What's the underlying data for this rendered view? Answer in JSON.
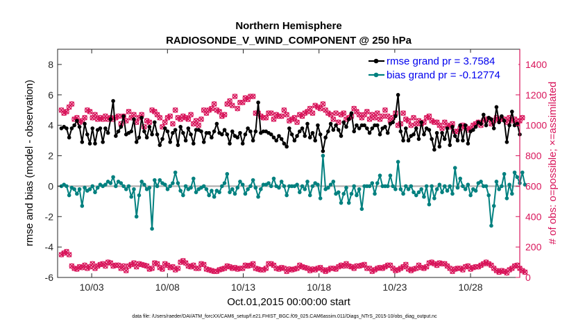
{
  "colors": {
    "rmse": "#000000",
    "bias": "#00807f",
    "obs": "#d8145a",
    "zero": "#b3b3b3",
    "legend_rmse_text": "#0000ee",
    "legend_bias_text": "#0000ee"
  },
  "chart_data": {
    "type": "line",
    "title": "Northern Hemisphere",
    "subtitle": "RADIOSONDE_V_WIND_COMPONENT @ 250 hPa",
    "xlabel": "Oct.01,2015 00:00:00 start",
    "ylabel_left": "rmse and bias (model - observation)",
    "ylabel_right": "# of obs: o=possible; ×=assimilated",
    "x_start_day": 0.75,
    "x_end_day": 31.25,
    "ylim_left": [
      -6,
      9
    ],
    "ylim_right": [
      0,
      1500
    ],
    "x_ticks": [
      {
        "day": 3,
        "label": "10/03"
      },
      {
        "day": 8,
        "label": "10/08"
      },
      {
        "day": 13,
        "label": "10/13"
      },
      {
        "day": 18,
        "label": "10/18"
      },
      {
        "day": 23,
        "label": "10/23"
      },
      {
        "day": 28,
        "label": "10/28"
      }
    ],
    "y_ticks_left": [
      "-6",
      "-4",
      "-2",
      "0",
      "2",
      "4",
      "6",
      "8"
    ],
    "y_ticks_right": [
      "0",
      "200",
      "400",
      "600",
      "800",
      "1000",
      "1200",
      "1400"
    ],
    "legend": [
      {
        "key": "rmse",
        "label": "rmse grand pr = 3.7584"
      },
      {
        "key": "bias",
        "label": "bias grand pr = -0.12774"
      }
    ],
    "footer": "data file: /Users/raeder/DAI/ATM_forcXX/CAM6_setup/f.e21.FHIST_BGC.f09_025.CAM6assim.011/Diags_NTrS_2015-10/obs_diag_output.nc",
    "series": [
      {
        "name": "rmse",
        "axis": "left",
        "values": [
          3.8,
          3.9,
          3.8,
          3.2,
          3.8,
          4.0,
          4.3,
          3.9,
          2.9,
          4.1,
          3.4,
          2.8,
          3.8,
          2.8,
          3.7,
          3.8,
          2.9,
          3.8,
          3.5,
          4.4,
          5.6,
          3.3,
          3.6,
          3.9,
          4.6,
          3.4,
          3.5,
          3.6,
          4.4,
          2.9,
          3.2,
          4.5,
          3.6,
          3.2,
          3.9,
          3.4,
          4.2,
          3.4,
          2.7,
          3.1,
          3.8,
          3.6,
          2.9,
          3.5,
          3.7,
          2.7,
          3.9,
          3.5,
          3.0,
          3.8,
          3.4,
          2.8,
          3.7,
          3.7,
          3.6,
          2.9,
          3.5,
          3.5,
          3.2,
          3.6,
          4.1,
          3.5,
          3.4,
          3.7,
          3.4,
          2.8,
          3.6,
          3.3,
          3.2,
          3.5,
          2.8,
          3.4,
          3.8,
          3.6,
          3.0,
          3.6,
          5.5,
          3.5,
          3.6,
          3.6,
          3.5,
          3.4,
          3.2,
          3.0,
          3.3,
          3.1,
          2.8,
          2.6,
          3.8,
          3.4,
          3.0,
          3.3,
          3.6,
          3.8,
          3.3,
          4.1,
          3.2,
          3.5,
          3.0,
          4.0,
          3.4,
          2.3,
          3.2,
          3.6,
          4.1,
          3.7,
          4.0,
          3.7,
          3.3,
          4.2,
          3.9,
          4.4,
          4.8,
          3.6,
          4.0,
          3.8,
          4.0,
          4.0,
          3.8,
          3.5,
          3.8,
          4.0,
          4.0,
          3.4,
          3.8,
          3.9,
          3.5,
          4.1,
          4.2,
          4.6,
          6.0,
          3.6,
          3.0,
          3.8,
          3.0,
          3.3,
          3.4,
          3.8,
          3.1,
          4.2,
          3.4,
          3.8,
          3.7,
          3.1,
          2.4,
          3.5,
          2.6,
          3.5,
          3.1,
          3.8,
          2.7,
          3.9,
          3.3,
          3.0,
          4.0,
          3.0,
          4.0,
          2.8,
          3.6,
          3.7,
          3.9,
          4.2,
          4.1,
          4.7,
          4.0,
          4.5,
          4.4,
          3.8,
          5.2,
          4.2,
          4.6,
          4.3,
          2.9,
          4.0,
          4.9,
          4.0,
          4.1,
          3.4
        ]
      },
      {
        "name": "bias",
        "axis": "left",
        "values": [
          0.0,
          0.1,
          0.0,
          -0.6,
          -0.1,
          -0.2,
          -0.5,
          -0.2,
          -1.3,
          -0.1,
          -0.3,
          -0.2,
          0.0,
          -0.4,
          -0.1,
          0.1,
          0.0,
          0.1,
          0.3,
          0.2,
          0.6,
          0.0,
          0.3,
          0.2,
          0.0,
          -0.2,
          0.0,
          -0.7,
          -0.2,
          -2.0,
          -0.6,
          0.3,
          0.1,
          -0.2,
          -0.1,
          -2.8,
          0.4,
          0.0,
          0.4,
          0.2,
          0.1,
          -0.2,
          0.0,
          0.2,
          0.9,
          0.2,
          -0.3,
          -0.6,
          0.0,
          -0.2,
          -0.1,
          0.5,
          -0.4,
          -0.2,
          -0.1,
          0.0,
          -0.2,
          -0.6,
          -0.3,
          -0.7,
          -0.3,
          -0.4,
          0.0,
          0.2,
          0.8,
          -0.4,
          -0.2,
          -0.5,
          -0.1,
          0.3,
          0.1,
          -0.5,
          -0.2,
          0.0,
          0.4,
          -0.1,
          -0.7,
          -0.2,
          0.1,
          0.1,
          0.2,
          0.0,
          0.5,
          0.0,
          -0.1,
          0.3,
          0.0,
          -0.6,
          0.0,
          0.0,
          0.0,
          0.1,
          -0.4,
          0.0,
          -0.2,
          0.3,
          -0.6,
          0.0,
          0.2,
          0.1,
          -0.8,
          2.0,
          -0.2,
          -0.1,
          0.1,
          0.3,
          -0.5,
          -0.4,
          -1.1,
          -0.5,
          -0.1,
          -1.1,
          -0.5,
          0.0,
          -0.6,
          -0.2,
          -1.5,
          0.0,
          0.0,
          0.0,
          0.2,
          -0.5,
          0.2,
          0.7,
          0.0,
          0.0,
          0.0,
          0.7,
          0.0,
          -0.2,
          1.6,
          -0.2,
          -0.5,
          0.0,
          -0.2,
          0.0,
          -0.4,
          -0.6,
          -0.4,
          -0.2,
          -0.7,
          0.0,
          -1.2,
          0.0,
          -0.8,
          -0.2,
          0.1,
          -0.4,
          0.0,
          -0.3,
          0.0,
          -0.5,
          1.2,
          -0.1,
          0.5,
          0.0,
          -0.2,
          0.1,
          -0.6,
          -0.2,
          -0.3,
          0.2,
          0.3,
          0.0,
          0.0,
          -0.6,
          -2.6,
          -1.3,
          0.3,
          -0.2,
          0.0,
          0.8,
          -0.8,
          0.1,
          -0.5,
          0.9,
          0.6,
          0.2,
          0.9,
          0.1
        ]
      },
      {
        "name": "possible",
        "axis": "right",
        "marker": "o",
        "values": [
          150,
          160,
          170,
          150,
          75,
          60,
          55,
          70,
          65,
          80,
          60,
          70,
          90,
          60,
          75,
          85,
          90,
          75,
          100,
          95,
          75,
          80,
          80,
          60,
          75,
          45,
          75,
          85,
          95,
          70,
          90,
          85,
          80,
          75,
          55,
          60,
          95,
          90,
          65,
          55,
          90,
          80,
          65,
          70,
          50,
          60,
          100,
          110,
          95,
          75,
          70,
          80,
          60,
          60,
          90,
          85,
          55,
          50,
          45,
          40,
          40,
          50,
          55,
          60,
          75,
          70,
          60,
          65,
          55,
          60,
          60,
          80,
          75,
          80,
          90,
          60,
          55,
          50,
          50,
          60,
          90,
          90,
          80,
          60,
          55,
          65,
          60,
          40,
          55,
          50,
          55,
          60,
          80,
          70,
          65,
          60,
          45,
          55,
          50,
          60,
          65,
          50,
          40,
          50,
          60,
          60,
          55,
          70,
          80,
          75,
          90,
          75,
          70,
          60,
          75,
          75,
          80,
          85,
          60,
          60,
          40,
          50,
          60,
          65,
          60,
          70,
          80,
          80,
          60,
          45,
          50,
          60,
          70,
          85,
          55,
          45,
          55,
          60,
          80,
          65,
          60,
          70,
          95,
          100,
          90,
          80,
          95,
          90,
          90,
          75,
          60,
          40,
          55,
          60,
          60,
          50,
          70,
          75,
          55,
          65,
          70,
          70,
          80,
          90,
          100,
          90,
          80,
          60,
          45,
          35,
          45,
          40,
          30,
          50,
          60,
          75,
          80,
          60,
          45,
          35
        ]
      },
      {
        "name": "assimilated",
        "axis": "right",
        "marker": "x",
        "values": [
          150,
          160,
          170,
          150,
          75,
          60,
          55,
          70,
          65,
          80,
          60,
          70,
          90,
          60,
          75,
          85,
          90,
          75,
          100,
          95,
          75,
          80,
          80,
          60,
          75,
          45,
          75,
          85,
          95,
          70,
          90,
          85,
          80,
          75,
          55,
          60,
          95,
          90,
          65,
          55,
          90,
          80,
          65,
          70,
          50,
          60,
          100,
          110,
          95,
          75,
          70,
          80,
          60,
          60,
          90,
          85,
          55,
          50,
          45,
          40,
          40,
          50,
          55,
          60,
          75,
          70,
          60,
          65,
          55,
          60,
          60,
          80,
          75,
          80,
          90,
          60,
          55,
          50,
          50,
          60,
          90,
          90,
          80,
          60,
          55,
          65,
          60,
          40,
          55,
          50,
          55,
          60,
          80,
          70,
          65,
          60,
          45,
          55,
          50,
          60,
          65,
          50,
          40,
          50,
          60,
          60,
          55,
          70,
          80,
          75,
          90,
          75,
          70,
          60,
          75,
          75,
          80,
          85,
          60,
          60,
          40,
          50,
          60,
          65,
          60,
          70,
          80,
          80,
          60,
          45,
          50,
          60,
          70,
          85,
          55,
          45,
          55,
          60,
          80,
          65,
          60,
          70,
          95,
          100,
          90,
          80,
          95,
          90,
          90,
          75,
          60,
          40,
          55,
          60,
          60,
          50,
          70,
          75,
          55,
          65,
          70,
          70,
          80,
          90,
          100,
          90,
          80,
          60,
          45,
          35,
          45,
          40,
          30,
          50,
          60,
          75,
          80,
          60,
          45,
          35
        ]
      },
      {
        "name": "possible_upper",
        "axis": "right",
        "marker": "o",
        "values": [
          1100,
          1080,
          1090,
          1120,
          1140,
          1040,
          1050,
          1020,
          1030,
          1050,
          1100,
          1090,
          1050,
          1070,
          1040,
          1050,
          1040,
          1060,
          1040,
          1050,
          1040,
          1050,
          1060,
          1010,
          1060,
          1030,
          1090,
          1050,
          1070,
          1020,
          1050,
          1070,
          990,
          1030,
          1020,
          1100,
          1090,
          1070,
          1050,
          990,
          1020,
          1050,
          1060,
          1010,
          1100,
          1050,
          1040,
          1060,
          1050,
          1040,
          1070,
          1010,
          1030,
          1000,
          1040,
          1100,
          1080,
          1100,
          1110,
          1140,
          1100,
          1090,
          1060,
          1070,
          1140,
          1160,
          1130,
          1190,
          1110,
          1150,
          1150,
          1180,
          1170,
          1190,
          1190,
          1080,
          1080,
          1060,
          1050,
          1050,
          1080,
          1080,
          1040,
          1070,
          1060,
          1060,
          1100,
          1070,
          1030,
          1040,
          1050,
          1020,
          1070,
          1060,
          1080,
          1090,
          1110,
          1080,
          1130,
          1120,
          1110,
          1140,
          1100,
          1080,
          1070,
          1040,
          1080,
          1020,
          1070,
          1080,
          1040,
          1050,
          1060,
          1110,
          1090,
          1070,
          1050,
          1070,
          1090,
          1040,
          1070,
          1050,
          1080,
          1040,
          1060,
          1100,
          1060,
          1030,
          1050,
          1080,
          1000,
          1010,
          1080,
          1040,
          1030,
          1000,
          1050,
          1010,
          1030,
          1010,
          1020,
          1050,
          1060,
          1030,
          1020,
          1020,
          1000,
          980,
          1020,
          1000,
          990,
          1010,
          960,
          960,
          980,
          1000,
          990,
          970,
          980,
          1000,
          1010,
          1020,
          1000,
          1030,
          1040,
          1040,
          1010,
          1030,
          1050,
          1040,
          1040,
          1040,
          1020,
          1050,
          1030,
          1040,
          1010,
          1030,
          1050
        ]
      },
      {
        "name": "assimilated_upper",
        "axis": "right",
        "marker": "x",
        "values": [
          1100,
          1080,
          1090,
          1120,
          1140,
          1040,
          1050,
          1020,
          1030,
          1050,
          1100,
          1090,
          1050,
          1070,
          1040,
          1050,
          1040,
          1060,
          1040,
          1050,
          1040,
          1050,
          1060,
          1010,
          1060,
          1030,
          1090,
          1050,
          1070,
          1020,
          1050,
          1070,
          990,
          1030,
          1020,
          1100,
          1090,
          1070,
          1050,
          990,
          1020,
          1050,
          1060,
          1010,
          1100,
          1050,
          1040,
          1060,
          1050,
          1040,
          1070,
          1010,
          1030,
          1000,
          1040,
          1100,
          1080,
          1100,
          1110,
          1140,
          1100,
          1090,
          1060,
          1070,
          1140,
          1160,
          1130,
          1190,
          1110,
          1150,
          1150,
          1180,
          1170,
          1190,
          1190,
          1080,
          1080,
          1060,
          1050,
          1050,
          1080,
          1080,
          1040,
          1070,
          1060,
          1060,
          1100,
          1070,
          1030,
          1040,
          1050,
          1020,
          1070,
          1060,
          1080,
          1090,
          1110,
          1080,
          1130,
          1120,
          1110,
          1140,
          1100,
          1080,
          1070,
          1040,
          1080,
          1020,
          1070,
          1080,
          1040,
          1050,
          1060,
          1110,
          1090,
          1070,
          1050,
          1070,
          1090,
          1040,
          1070,
          1050,
          1080,
          1040,
          1060,
          1100,
          1060,
          1030,
          1050,
          1080,
          1000,
          1010,
          1080,
          1040,
          1030,
          1000,
          1050,
          1010,
          1030,
          1010,
          1020,
          1050,
          1060,
          1030,
          1020,
          1020,
          1000,
          980,
          1020,
          1000,
          990,
          1010,
          960,
          960,
          980,
          1000,
          990,
          970,
          980,
          1000,
          1010,
          1020,
          1000,
          1030,
          1040,
          1040,
          1010,
          1030,
          1050,
          1040,
          1040,
          1040,
          1020,
          1050,
          1030,
          1040,
          1010,
          1030,
          1050
        ]
      }
    ]
  }
}
